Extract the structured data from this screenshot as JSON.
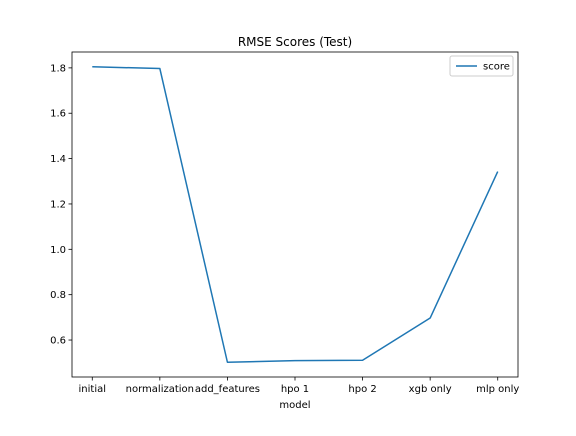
{
  "chart_data": {
    "type": "line",
    "title": "RMSE Scores (Test)",
    "xlabel": "model",
    "ylabel": "",
    "categories": [
      "initial",
      "normalization",
      "add_features",
      "hpo 1",
      "hpo 2",
      "xgb only",
      "mlp only"
    ],
    "series": [
      {
        "name": "score",
        "values": [
          1.805,
          1.797,
          0.502,
          0.509,
          0.511,
          0.697,
          1.343
        ],
        "color": "#1f77b4"
      }
    ],
    "yticks": [
      0.6,
      0.8,
      1.0,
      1.2,
      1.4,
      1.6,
      1.8
    ],
    "ytick_labels": [
      "0.6",
      "0.8",
      "1.0",
      "1.2",
      "1.4",
      "1.6",
      "1.8"
    ],
    "ylim": [
      0.437,
      1.87
    ],
    "grid": false,
    "legend_position": "top-right"
  }
}
